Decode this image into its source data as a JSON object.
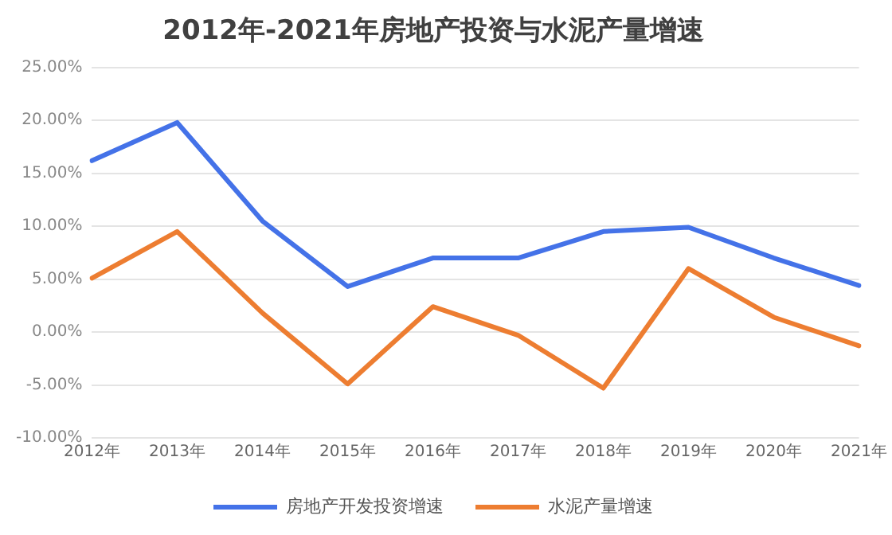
{
  "chart_data": {
    "type": "line",
    "title": "2012年-2021年房地产投资与水泥产量增速",
    "categories": [
      "2012年",
      "2013年",
      "2014年",
      "2015年",
      "2016年",
      "2017年",
      "2018年",
      "2019年",
      "2020年",
      "2021年"
    ],
    "series": [
      {
        "name": "房地产开发投资增速",
        "color": "#4472e8",
        "values": [
          16.2,
          19.8,
          10.5,
          4.3,
          7.0,
          7.0,
          9.5,
          9.9,
          7.0,
          4.4
        ]
      },
      {
        "name": "水泥产量增速",
        "color": "#ed7d31",
        "values": [
          5.1,
          9.5,
          1.8,
          -4.9,
          2.4,
          -0.3,
          -5.3,
          6.0,
          1.4,
          -1.3
        ]
      }
    ],
    "ylim": [
      -10,
      25
    ],
    "yticks": [
      {
        "value": -10,
        "label": "-10.00%"
      },
      {
        "value": -5,
        "label": "-5.00%"
      },
      {
        "value": 0,
        "label": "0.00%"
      },
      {
        "value": 5,
        "label": "5.00%"
      },
      {
        "value": 10,
        "label": "10.00%"
      },
      {
        "value": 15,
        "label": "15.00%"
      },
      {
        "value": 20,
        "label": "20.00%"
      },
      {
        "value": 25,
        "label": "25.00%"
      }
    ],
    "grid": "y",
    "legend": "bottom",
    "marker": "none",
    "line_style": "solid"
  }
}
